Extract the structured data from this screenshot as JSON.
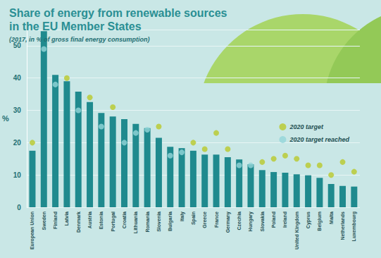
{
  "chart_data": {
    "type": "bar",
    "title": "Share of energy from renewable sources\nin the EU Member States",
    "subtitle": "(2017, in % of gross final energy consumption)",
    "y_label": "%",
    "categories": [
      "European Union",
      "Sweden",
      "Finland",
      "Latvia",
      "Denmark",
      "Austria",
      "Estonia",
      "Portugal",
      "Croatia",
      "Lithuania",
      "Romania",
      "Slovenia",
      "Bulgaria",
      "Italy",
      "Spain",
      "Greece",
      "France",
      "Germany",
      "Czechia",
      "Hungary",
      "Slovakia",
      "Poland",
      "Ireland",
      "United Kingdom",
      "Cyprus",
      "Belgium",
      "Malta",
      "Netherlands",
      "Luxembourg"
    ],
    "values": [
      17.5,
      54.5,
      41.0,
      39.0,
      35.8,
      32.6,
      29.2,
      28.1,
      27.3,
      25.8,
      24.5,
      21.5,
      18.7,
      18.3,
      17.5,
      16.3,
      16.3,
      15.5,
      14.8,
      13.3,
      11.5,
      10.9,
      10.7,
      10.2,
      9.9,
      9.1,
      7.2,
      6.6,
      6.4
    ],
    "color": "#1f8a8e",
    "series": [
      {
        "name": "2020 target",
        "type": "scatter",
        "color": "#b9c92a",
        "values": [
          20,
          null,
          null,
          40,
          null,
          34,
          null,
          31,
          null,
          null,
          null,
          25,
          null,
          null,
          20,
          18,
          23,
          18,
          null,
          null,
          14,
          15,
          16,
          15,
          13,
          13,
          10,
          14,
          11
        ]
      },
      {
        "name": "2020 target reached",
        "type": "scatter",
        "color": "#93d6da",
        "values": [
          null,
          49,
          38,
          null,
          30,
          null,
          25,
          null,
          20,
          23,
          24,
          null,
          16,
          17,
          null,
          null,
          null,
          null,
          13,
          13,
          null,
          null,
          null,
          null,
          null,
          null,
          null,
          null,
          null
        ]
      }
    ],
    "ylim": [
      0,
      55
    ],
    "yticks": [
      0,
      10,
      20,
      30,
      40,
      50
    ],
    "grid": true,
    "legend": "right"
  }
}
